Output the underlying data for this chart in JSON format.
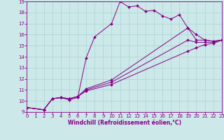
{
  "background_color": "#cce8e8",
  "grid_color": "#aad4d4",
  "line_color": "#880088",
  "marker": "D",
  "marker_size": 2.0,
  "xlabel": "Windchill (Refroidissement éolien,°C)",
  "xlabel_fontsize": 5.5,
  "xlim": [
    0,
    23
  ],
  "ylim": [
    9,
    19
  ],
  "xticks": [
    0,
    1,
    2,
    3,
    4,
    5,
    6,
    7,
    8,
    9,
    10,
    11,
    12,
    13,
    14,
    15,
    16,
    17,
    18,
    19,
    20,
    21,
    22,
    23
  ],
  "yticks": [
    9,
    10,
    11,
    12,
    13,
    14,
    15,
    16,
    17,
    18,
    19
  ],
  "tick_fontsize": 5.0,
  "series": [
    {
      "x": [
        0,
        2,
        3,
        4,
        5,
        6,
        7,
        8,
        10,
        11,
        12,
        13,
        14,
        15,
        16,
        17,
        18,
        19,
        20,
        21,
        22,
        23
      ],
      "y": [
        9.4,
        9.2,
        10.2,
        10.3,
        10.1,
        10.3,
        13.9,
        15.8,
        17.0,
        19.0,
        18.5,
        18.6,
        18.1,
        18.2,
        17.7,
        17.4,
        17.8,
        16.6,
        15.5,
        15.5,
        15.4,
        15.5
      ]
    },
    {
      "x": [
        0,
        2,
        3,
        4,
        5,
        6,
        7,
        10,
        19,
        20,
        21,
        22,
        23
      ],
      "y": [
        9.4,
        9.2,
        10.2,
        10.3,
        10.2,
        10.4,
        11.1,
        11.9,
        16.6,
        16.0,
        15.5,
        15.4,
        15.5
      ]
    },
    {
      "x": [
        0,
        2,
        3,
        4,
        5,
        6,
        7,
        10,
        19,
        20,
        21,
        22,
        23
      ],
      "y": [
        9.4,
        9.2,
        10.2,
        10.3,
        10.2,
        10.4,
        11.0,
        11.7,
        15.5,
        15.3,
        15.3,
        15.3,
        15.5
      ]
    },
    {
      "x": [
        0,
        2,
        3,
        4,
        5,
        6,
        7,
        10,
        19,
        20,
        21,
        22,
        23
      ],
      "y": [
        9.4,
        9.2,
        10.2,
        10.3,
        10.2,
        10.4,
        10.9,
        11.5,
        14.5,
        14.8,
        15.1,
        15.2,
        15.5
      ]
    }
  ]
}
